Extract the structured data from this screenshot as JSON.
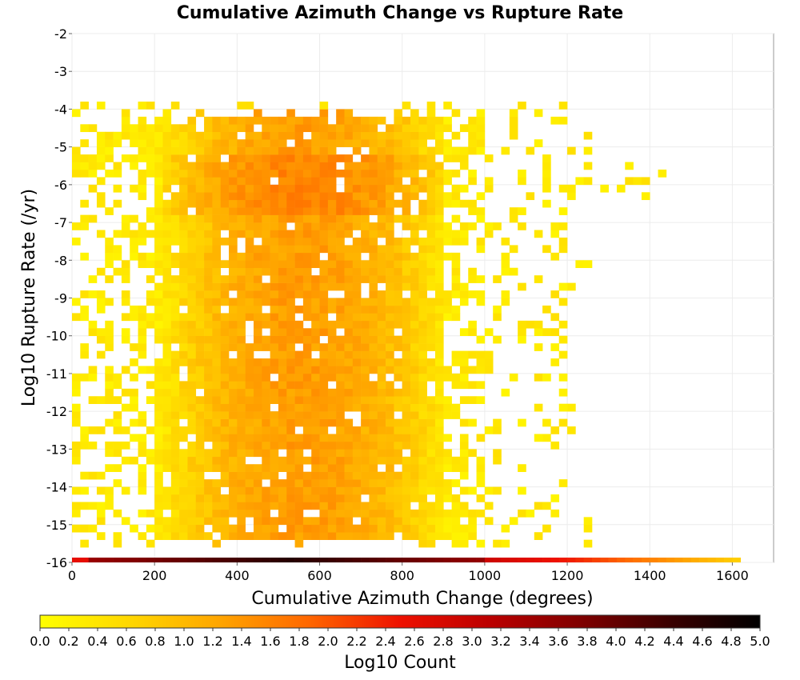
{
  "chart_data": {
    "type": "heatmap",
    "title": "Cumulative Azimuth Change vs Rupture Rate",
    "xlabel": "Cumulative Azimuth Change (degrees)",
    "ylabel": "Log10 Rupture Rate (/yr)",
    "colorbar_label": "Log10 Count",
    "xlim": [
      0,
      1700
    ],
    "ylim": [
      -16,
      -2
    ],
    "x_ticks": [
      "0",
      "200",
      "400",
      "600",
      "800",
      "1000",
      "1200",
      "1400",
      "1600"
    ],
    "y_ticks": [
      "-2",
      "-3",
      "-4",
      "-5",
      "-6",
      "-7",
      "-8",
      "-9",
      "-10",
      "-11",
      "-12",
      "-13",
      "-14",
      "-15",
      "-16"
    ],
    "colorbar_ticks": [
      "0.0",
      "0.2",
      "0.4",
      "0.6",
      "0.8",
      "1.0",
      "1.2",
      "1.4",
      "1.6",
      "1.8",
      "2.0",
      "2.2",
      "2.4",
      "2.6",
      "2.8",
      "3.0",
      "3.2",
      "3.4",
      "3.6",
      "3.8",
      "4.0",
      "4.2",
      "4.4",
      "4.6",
      "4.8",
      "5.0"
    ],
    "colorbar_range": [
      0,
      5
    ],
    "colormap": [
      "#ffff00",
      "#ffd700",
      "#ffa500",
      "#ff6600",
      "#ee1100",
      "#bb0000",
      "#800000",
      "#3a0000",
      "#000000"
    ],
    "bin_size": {
      "x": 20,
      "y": 0.2
    },
    "grid": true,
    "cells_summary": "Dense yellow-orange block between x≈200–900 and y≈-15.6 to -4.2; sparse cells extend to x≈1430; dark red/black strip along y=-16 from x=0 to ≈1620."
  }
}
